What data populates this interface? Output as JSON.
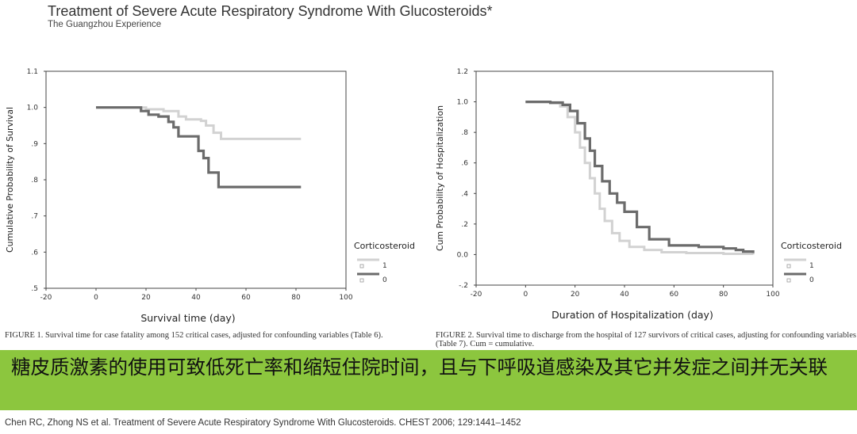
{
  "slide": {
    "title": "Treatment of Severe Acute Respiratory Syndrome With Glucosteroids*",
    "subtitle": "The Guangzhou Experience"
  },
  "colors": {
    "banner": "#8cc63e",
    "line_light": "#d2d2d2",
    "line_dark": "#6b6b6b",
    "axis": "#444444"
  },
  "chart_data": [
    {
      "type": "line",
      "xlabel": "Survival time    (day)",
      "ylabel": "Cumulative Probability of Survival",
      "xlim": [
        -20,
        100
      ],
      "ylim": [
        0.5,
        1.1
      ],
      "xticks": [
        -20,
        0,
        20,
        40,
        60,
        80,
        100
      ],
      "yticks": [
        0.5,
        0.6,
        0.7,
        0.8,
        0.9,
        1.0,
        1.1
      ],
      "yticklabels": [
        ".5",
        ".6",
        ".7",
        ".8",
        ".9",
        "1.0",
        "1.1"
      ],
      "legend": {
        "title": "Corticosteroid",
        "entries": [
          "1",
          "0"
        ]
      },
      "series": [
        {
          "name": "1",
          "x": [
            0,
            12,
            20,
            27,
            33,
            36,
            42,
            44,
            47,
            50,
            56,
            63,
            70,
            82
          ],
          "y": [
            1.0,
            1.0,
            0.995,
            0.99,
            0.975,
            0.967,
            0.963,
            0.95,
            0.93,
            0.913,
            0.913,
            0.913,
            0.913,
            0.913
          ]
        },
        {
          "name": "0",
          "x": [
            0,
            15,
            18,
            21,
            25,
            29,
            31,
            33,
            36,
            41,
            43,
            45,
            47,
            49,
            55,
            65,
            82
          ],
          "y": [
            1.0,
            1.0,
            0.99,
            0.98,
            0.975,
            0.96,
            0.945,
            0.92,
            0.92,
            0.88,
            0.86,
            0.82,
            0.82,
            0.78,
            0.78,
            0.78,
            0.78
          ]
        }
      ]
    },
    {
      "type": "line",
      "xlabel": "Duration of Hospitalization (day)",
      "ylabel": "Cum Probability of Hospitalization",
      "xlim": [
        -20,
        100
      ],
      "ylim": [
        -0.2,
        1.2
      ],
      "xticks": [
        -20,
        0,
        20,
        40,
        60,
        80,
        100
      ],
      "yticks": [
        -0.2,
        0.0,
        0.2,
        0.4,
        0.6,
        0.8,
        1.0,
        1.2
      ],
      "yticklabels": [
        "-.2",
        "0.0",
        ".2",
        ".4",
        ".6",
        ".8",
        "1.0",
        "1.2"
      ],
      "legend": {
        "title": "Corticosteroid",
        "entries": [
          "1",
          "0"
        ]
      },
      "series": [
        {
          "name": "1",
          "x": [
            0,
            10,
            14,
            17,
            20,
            22,
            24,
            26,
            28,
            30,
            32,
            35,
            38,
            42,
            48,
            55,
            65,
            80,
            92
          ],
          "y": [
            1.0,
            0.99,
            0.97,
            0.9,
            0.8,
            0.7,
            0.6,
            0.5,
            0.4,
            0.3,
            0.22,
            0.14,
            0.09,
            0.05,
            0.03,
            0.015,
            0.01,
            0.005,
            0.0
          ]
        },
        {
          "name": "0",
          "x": [
            0,
            10,
            15,
            18,
            21,
            24,
            26,
            28,
            31,
            34,
            37,
            40,
            45,
            50,
            58,
            70,
            80,
            85,
            88,
            92
          ],
          "y": [
            1.0,
            0.995,
            0.98,
            0.94,
            0.86,
            0.76,
            0.68,
            0.58,
            0.48,
            0.4,
            0.34,
            0.28,
            0.18,
            0.1,
            0.06,
            0.05,
            0.04,
            0.03,
            0.02,
            0.01
          ]
        }
      ]
    }
  ],
  "captions": {
    "fig1": "FIGURE 1. Survival time for case fatality among 152 critical cases, adjusted for confounding variables (Table 6).",
    "fig2": "FIGURE 2. Survival time to discharge from the hospital of 127 survivors of critical cases, adjusting for confounding variables (Table 7). Cum = cumulative."
  },
  "banner": {
    "text": "糖皮质激素的使用可致低死亡率和缩短住院时间，且与下呼吸道感染及其它并发症之间并无关联"
  },
  "footer": {
    "citation": "Chen RC, Zhong NS et al. Treatment of Severe Acute Respiratory Syndrome With Glucosteroids. CHEST 2006; 129:1441–1452"
  }
}
